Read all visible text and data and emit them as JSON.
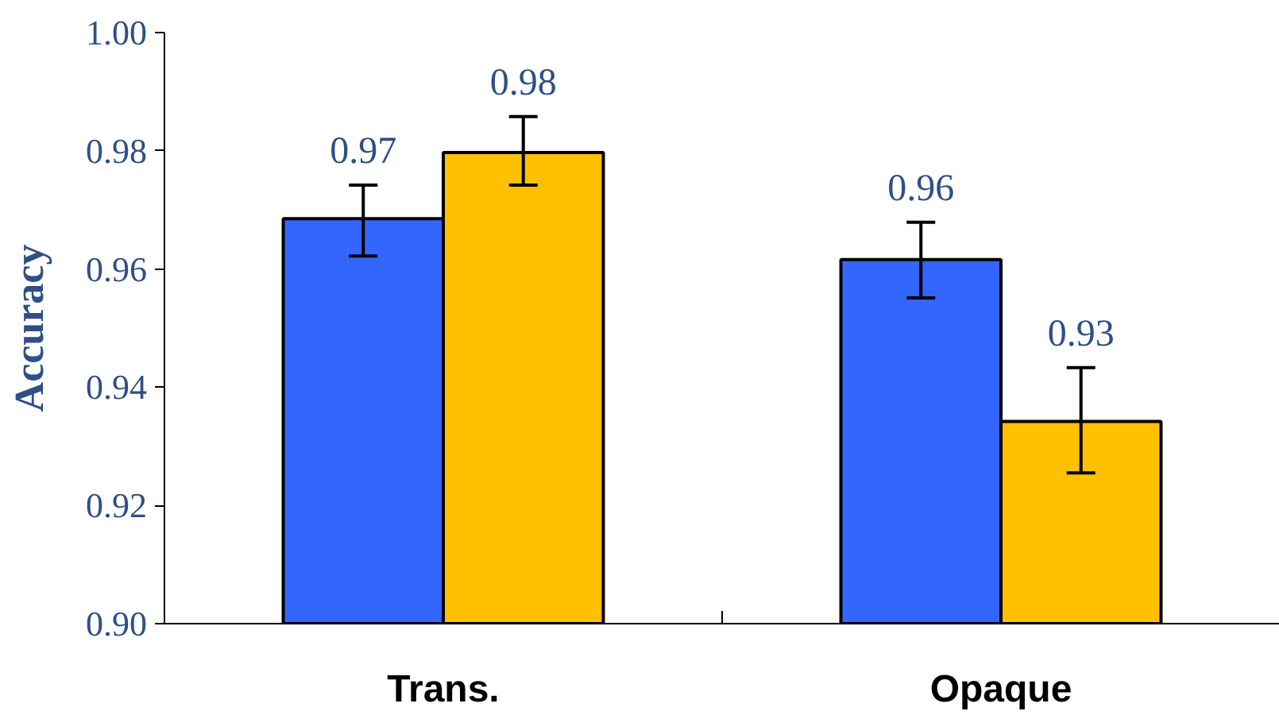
{
  "chart_data": {
    "type": "bar",
    "ylabel": "Accuracy",
    "categories": [
      "Trans.",
      "Opaque"
    ],
    "series": [
      {
        "color": "#3366ff",
        "values": [
          0.9685,
          0.9616
        ],
        "errors": [
          [
            0.9622,
            0.9742
          ],
          [
            0.9551,
            0.9679
          ]
        ],
        "value_labels": [
          "0.97",
          "0.96"
        ]
      },
      {
        "color": "#ffc000",
        "values": [
          0.9797,
          0.9342
        ],
        "errors": [
          [
            0.9742,
            0.9858
          ],
          [
            0.9255,
            0.9433
          ]
        ],
        "value_labels": [
          "0.98",
          "0.93"
        ]
      }
    ],
    "ylim": [
      0.9,
      1.0
    ],
    "yticks": [
      {
        "value": 0.9,
        "label": "0.90"
      },
      {
        "value": 0.92,
        "label": "0.92"
      },
      {
        "value": 0.94,
        "label": "0.94"
      },
      {
        "value": 0.96,
        "label": "0.96"
      },
      {
        "value": 0.98,
        "label": "0.98"
      },
      {
        "value": 1.0,
        "label": "1.00"
      }
    ],
    "grid": false
  }
}
